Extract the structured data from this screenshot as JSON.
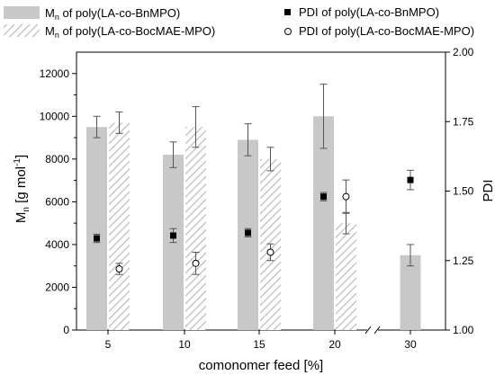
{
  "chart_data": {
    "type": "bar",
    "xlabel": "comonomer feed [%]",
    "ylabel_main": "M",
    "ylabel_sub": "n",
    "ylabel_rest": " [g mol",
    "ylabel_sup": "-1",
    "ylabel_end": "]",
    "y2label": "PDI",
    "categories": [
      "5",
      "10",
      "15",
      "20",
      "30"
    ],
    "ylim": [
      0,
      13000
    ],
    "y_ticks": [
      "0",
      "2000",
      "4000",
      "6000",
      "8000",
      "10000",
      "12000"
    ],
    "y2lim": [
      1.0,
      2.0
    ],
    "y2_ticks": [
      "1.00",
      "1.25",
      "1.50",
      "1.75",
      "2.00"
    ],
    "axis_break_between": [
      "20",
      "30"
    ],
    "series": [
      {
        "kind": "bar",
        "legend_main": "M",
        "legend_sub": "n",
        "legend_rest": " of poly(LA-co-BnMPO)",
        "fill": "#c8c8c8",
        "values": [
          9500,
          8200,
          8900,
          10000,
          3500
        ],
        "errors": [
          500,
          600,
          750,
          1500,
          500
        ]
      },
      {
        "kind": "bar",
        "legend_main": "M",
        "legend_sub": "n",
        "legend_rest": " of poly(LA-co-BocMAE-MPO)",
        "fill": "hatched",
        "values": [
          9700,
          9500,
          8000,
          5000,
          null
        ],
        "errors": [
          500,
          950,
          550,
          500,
          null
        ]
      },
      {
        "kind": "point",
        "legend": "PDI of poly(LA-co-BnMPO)",
        "marker": "filled-square",
        "axis": "right",
        "values": [
          1.33,
          1.34,
          1.35,
          1.48,
          1.54
        ],
        "errors": [
          0.015,
          0.025,
          0.015,
          0.015,
          0.035
        ]
      },
      {
        "kind": "point",
        "legend": "PDI of poly(LA-co-BocMAE-MPO)",
        "marker": "open-circle",
        "axis": "right",
        "values": [
          1.22,
          1.24,
          1.28,
          1.48,
          null
        ],
        "errors": [
          0.02,
          0.04,
          0.03,
          0.06,
          null
        ]
      }
    ]
  }
}
